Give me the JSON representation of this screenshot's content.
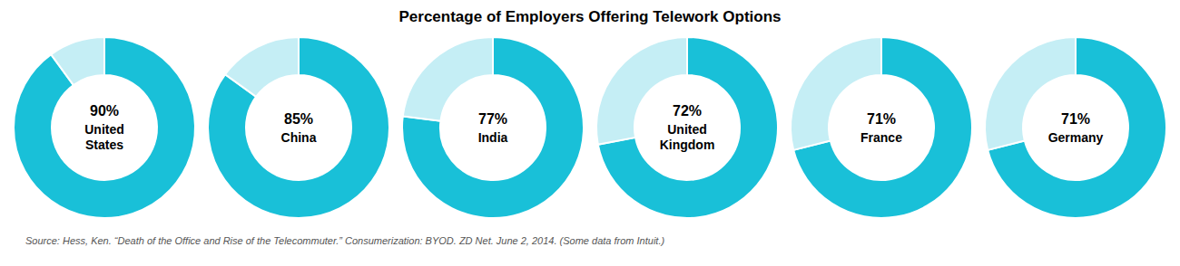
{
  "title": "Percentage of Employers Offering Telework Options",
  "source": "Source: Hess, Ken. “Death of the Office and Rise of the Telecommuter.” Consumerization: BYOD. ZD Net. June 2, 2014. (Some data from Intuit.)",
  "chart_data": [
    {
      "type": "donut",
      "title": "United\nStates",
      "values": [
        90,
        10
      ],
      "value_labels": [
        "90%",
        null
      ],
      "colors": [
        "#19C0D8",
        "#C5EEF5"
      ]
    },
    {
      "type": "donut",
      "title": "China",
      "values": [
        85,
        15
      ],
      "value_labels": [
        "85%",
        null
      ],
      "colors": [
        "#19C0D8",
        "#C5EEF5"
      ]
    },
    {
      "type": "donut",
      "title": "India",
      "values": [
        77,
        23
      ],
      "value_labels": [
        "77%",
        null
      ],
      "colors": [
        "#19C0D8",
        "#C5EEF5"
      ]
    },
    {
      "type": "donut",
      "title": "United\nKingdom",
      "values": [
        72,
        28
      ],
      "value_labels": [
        "72%",
        null
      ],
      "colors": [
        "#19C0D8",
        "#C5EEF5"
      ]
    },
    {
      "type": "donut",
      "title": "France",
      "values": [
        71,
        29
      ],
      "value_labels": [
        "71%",
        null
      ],
      "colors": [
        "#19C0D8",
        "#C5EEF5"
      ]
    },
    {
      "type": "donut",
      "title": "Germany",
      "values": [
        71,
        29
      ],
      "value_labels": [
        "71%",
        null
      ],
      "colors": [
        "#19C0D8",
        "#C5EEF5"
      ]
    }
  ]
}
